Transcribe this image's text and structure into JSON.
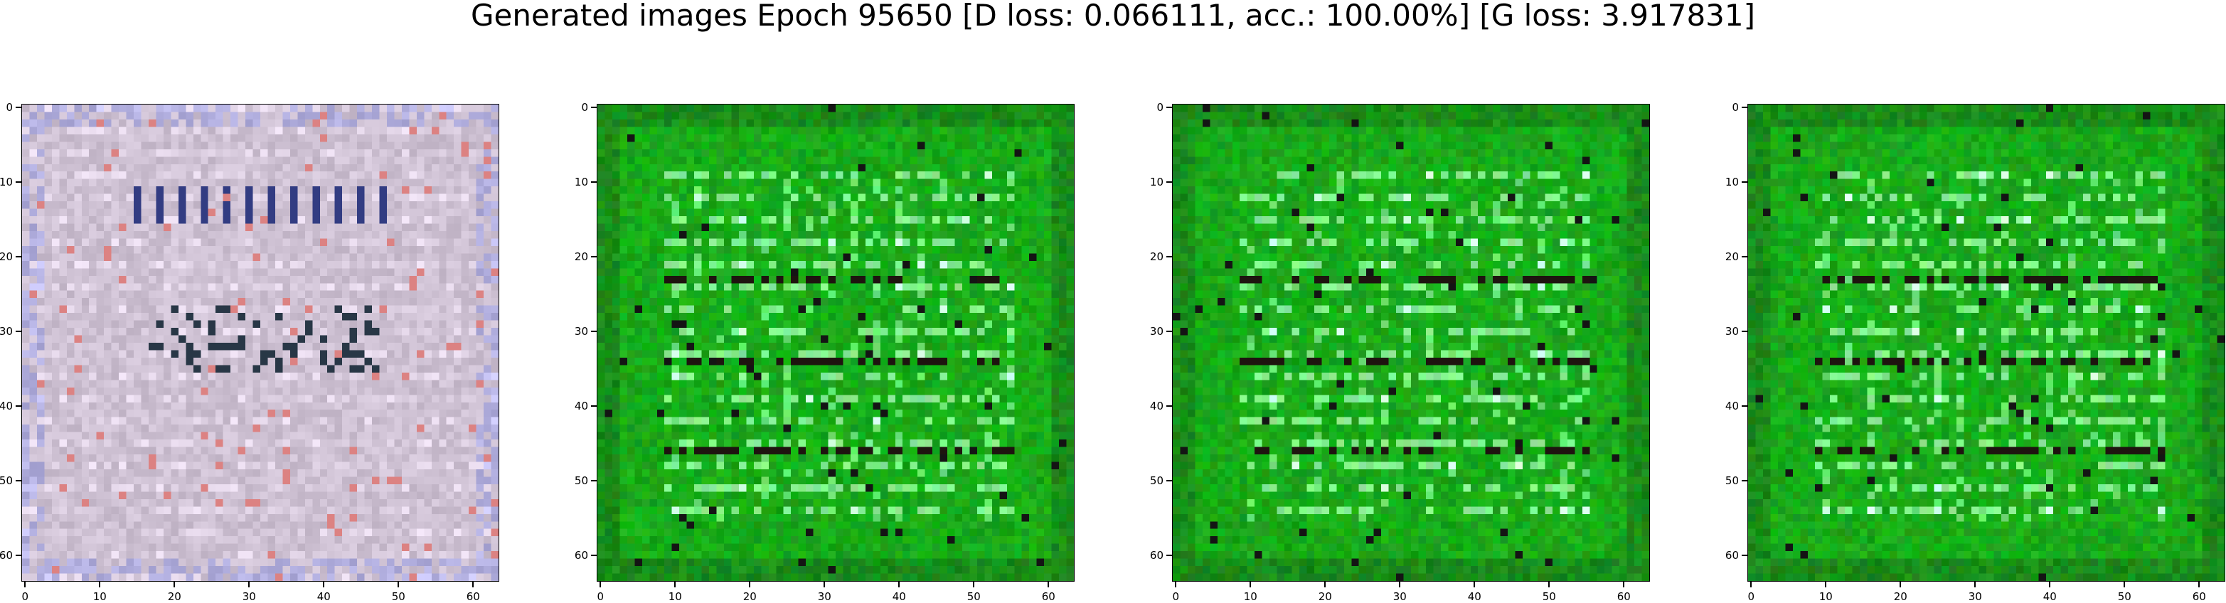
{
  "figure": {
    "title": "Generated images Epoch 95650 [D loss: 0.066111, acc.: 100.00%] [G loss: 3.917831]"
  },
  "axes": {
    "x_ticks": [
      "0",
      "10",
      "20",
      "30",
      "40",
      "50",
      "60"
    ],
    "y_ticks": [
      "0",
      "10",
      "20",
      "30",
      "40",
      "50",
      "60"
    ],
    "xlim": [
      -0.5,
      63.5
    ],
    "ylim": [
      63.5,
      -0.5
    ]
  },
  "panels": [
    {
      "image": "generated-sample",
      "palette": "pale-lavender-gray"
    },
    {
      "image": "generated-sample",
      "palette": "green"
    },
    {
      "image": "generated-sample",
      "palette": "green"
    },
    {
      "image": "generated-sample",
      "palette": "green"
    }
  ],
  "colors": {
    "lavender_base": "#c9b9cd",
    "green_base": "#1e9b1e",
    "green_bright": "#a8f0b0",
    "dark_stripe": "#1a1010"
  }
}
